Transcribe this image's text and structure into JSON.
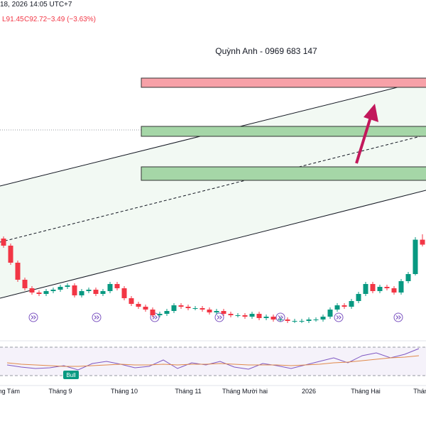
{
  "header": {
    "time": "18, 2026 14:05 UTC+7",
    "low": "L91.45",
    "close": "C92.72",
    "change": "−3.49 (−3.63%)"
  },
  "watermark": "Quỳnh Anh - 0969 683 147",
  "annotation": "Bull",
  "chart_data": {
    "type": "candlestick",
    "up_color": "#089981",
    "down_color": "#f23645",
    "ylim": [
      25,
      265
    ],
    "categories": [
      "Tháng Tám",
      null,
      null,
      null,
      null,
      null,
      null,
      null,
      "Tháng 9",
      null,
      null,
      null,
      null,
      null,
      null,
      null,
      null,
      "Tháng 10",
      null,
      null,
      null,
      null,
      null,
      null,
      null,
      null,
      "Tháng 11",
      null,
      null,
      null,
      null,
      null,
      null,
      null,
      "Tháng Mười hai",
      null,
      null,
      null,
      null,
      null,
      null,
      null,
      null,
      "2026",
      null,
      null,
      null,
      null,
      null,
      null,
      null,
      "Tháng Hai",
      null,
      null,
      null,
      null,
      null,
      null,
      null,
      "Tháng"
    ],
    "open": [
      97,
      92,
      80,
      68,
      62,
      59,
      58,
      60,
      61,
      63,
      64,
      57,
      60,
      61,
      58,
      60,
      65,
      62,
      55,
      51,
      49,
      47,
      43,
      44,
      46,
      50,
      49,
      48,
      48,
      47,
      45,
      46,
      44,
      43,
      43,
      42,
      44,
      41,
      42,
      40,
      40,
      39,
      39,
      39,
      40,
      40,
      42,
      47,
      50,
      49,
      53,
      58,
      65,
      60,
      63,
      62,
      59,
      67,
      72,
      96.21
    ],
    "high": [
      98.5,
      93.5,
      81.5,
      69.5,
      63.5,
      60.5,
      61.5,
      62.5,
      64.5,
      65.5,
      65.5,
      61.5,
      62.5,
      62.5,
      61.5,
      66.5,
      66.5,
      63.5,
      56.5,
      52.5,
      50.5,
      48.5,
      45.5,
      47.5,
      51.5,
      51.5,
      50.5,
      49.5,
      49.5,
      48.5,
      47.5,
      47.5,
      45.5,
      44.5,
      44.5,
      45.5,
      45.5,
      43.5,
      43.5,
      41.5,
      41.5,
      40.5,
      40.5,
      41.5,
      41.5,
      43.5,
      48.5,
      51.5,
      51.5,
      54.5,
      59.5,
      66.5,
      66.5,
      64.5,
      64.5,
      63.5,
      68.5,
      73.5,
      98,
      100
    ],
    "low": [
      90.5,
      78.5,
      66.5,
      60.5,
      57.5,
      56.5,
      56.5,
      58.5,
      59.5,
      61.5,
      55.5,
      55.5,
      58.5,
      56.5,
      56.5,
      58.5,
      60.5,
      53.5,
      49.5,
      47.5,
      45.5,
      41.5,
      41.5,
      42.5,
      44.5,
      47.5,
      46.5,
      46.5,
      45.5,
      43.5,
      43.5,
      42.5,
      41.5,
      41.5,
      40.5,
      40.5,
      39.5,
      39.5,
      38.5,
      38.5,
      37.5,
      37.5,
      37.5,
      37.5,
      38.5,
      38.5,
      40.5,
      45.5,
      47.5,
      47.5,
      51.5,
      56.5,
      58.5,
      58.5,
      60.5,
      57.5,
      57.5,
      65.5,
      71,
      91.45
    ],
    "close": [
      92,
      80,
      68,
      62,
      59,
      58,
      60,
      61,
      63,
      64,
      57,
      60,
      61,
      58,
      60,
      65,
      62,
      55,
      51,
      49,
      47,
      43,
      44,
      46,
      50,
      49,
      48,
      48,
      47,
      45,
      46,
      44,
      43,
      43,
      42,
      44,
      41,
      42,
      40,
      40,
      39,
      39,
      39,
      40,
      40,
      42,
      47,
      50,
      49,
      53,
      58,
      65,
      60,
      63,
      62,
      59,
      67,
      72,
      96.21,
      92.72
    ],
    "rsi": {
      "ylim": [
        0,
        100
      ],
      "bands": [
        30,
        70
      ],
      "series": [
        {
          "color": "#7e57c2",
          "values": [
            45,
            42,
            40,
            41,
            44,
            38,
            47,
            50,
            46,
            41,
            43,
            52,
            40,
            48,
            45,
            50,
            42,
            39,
            47,
            44,
            40,
            45,
            50,
            55,
            48,
            58,
            62,
            55,
            60,
            68
          ]
        },
        {
          "color": "#e0894a",
          "values": [
            48,
            46,
            45,
            44,
            43,
            43,
            44,
            45,
            46,
            45,
            45,
            46,
            45,
            46,
            46,
            47,
            46,
            45,
            45,
            45,
            44,
            45,
            46,
            48,
            49,
            51,
            53,
            55,
            56,
            58
          ]
        }
      ]
    }
  }
}
